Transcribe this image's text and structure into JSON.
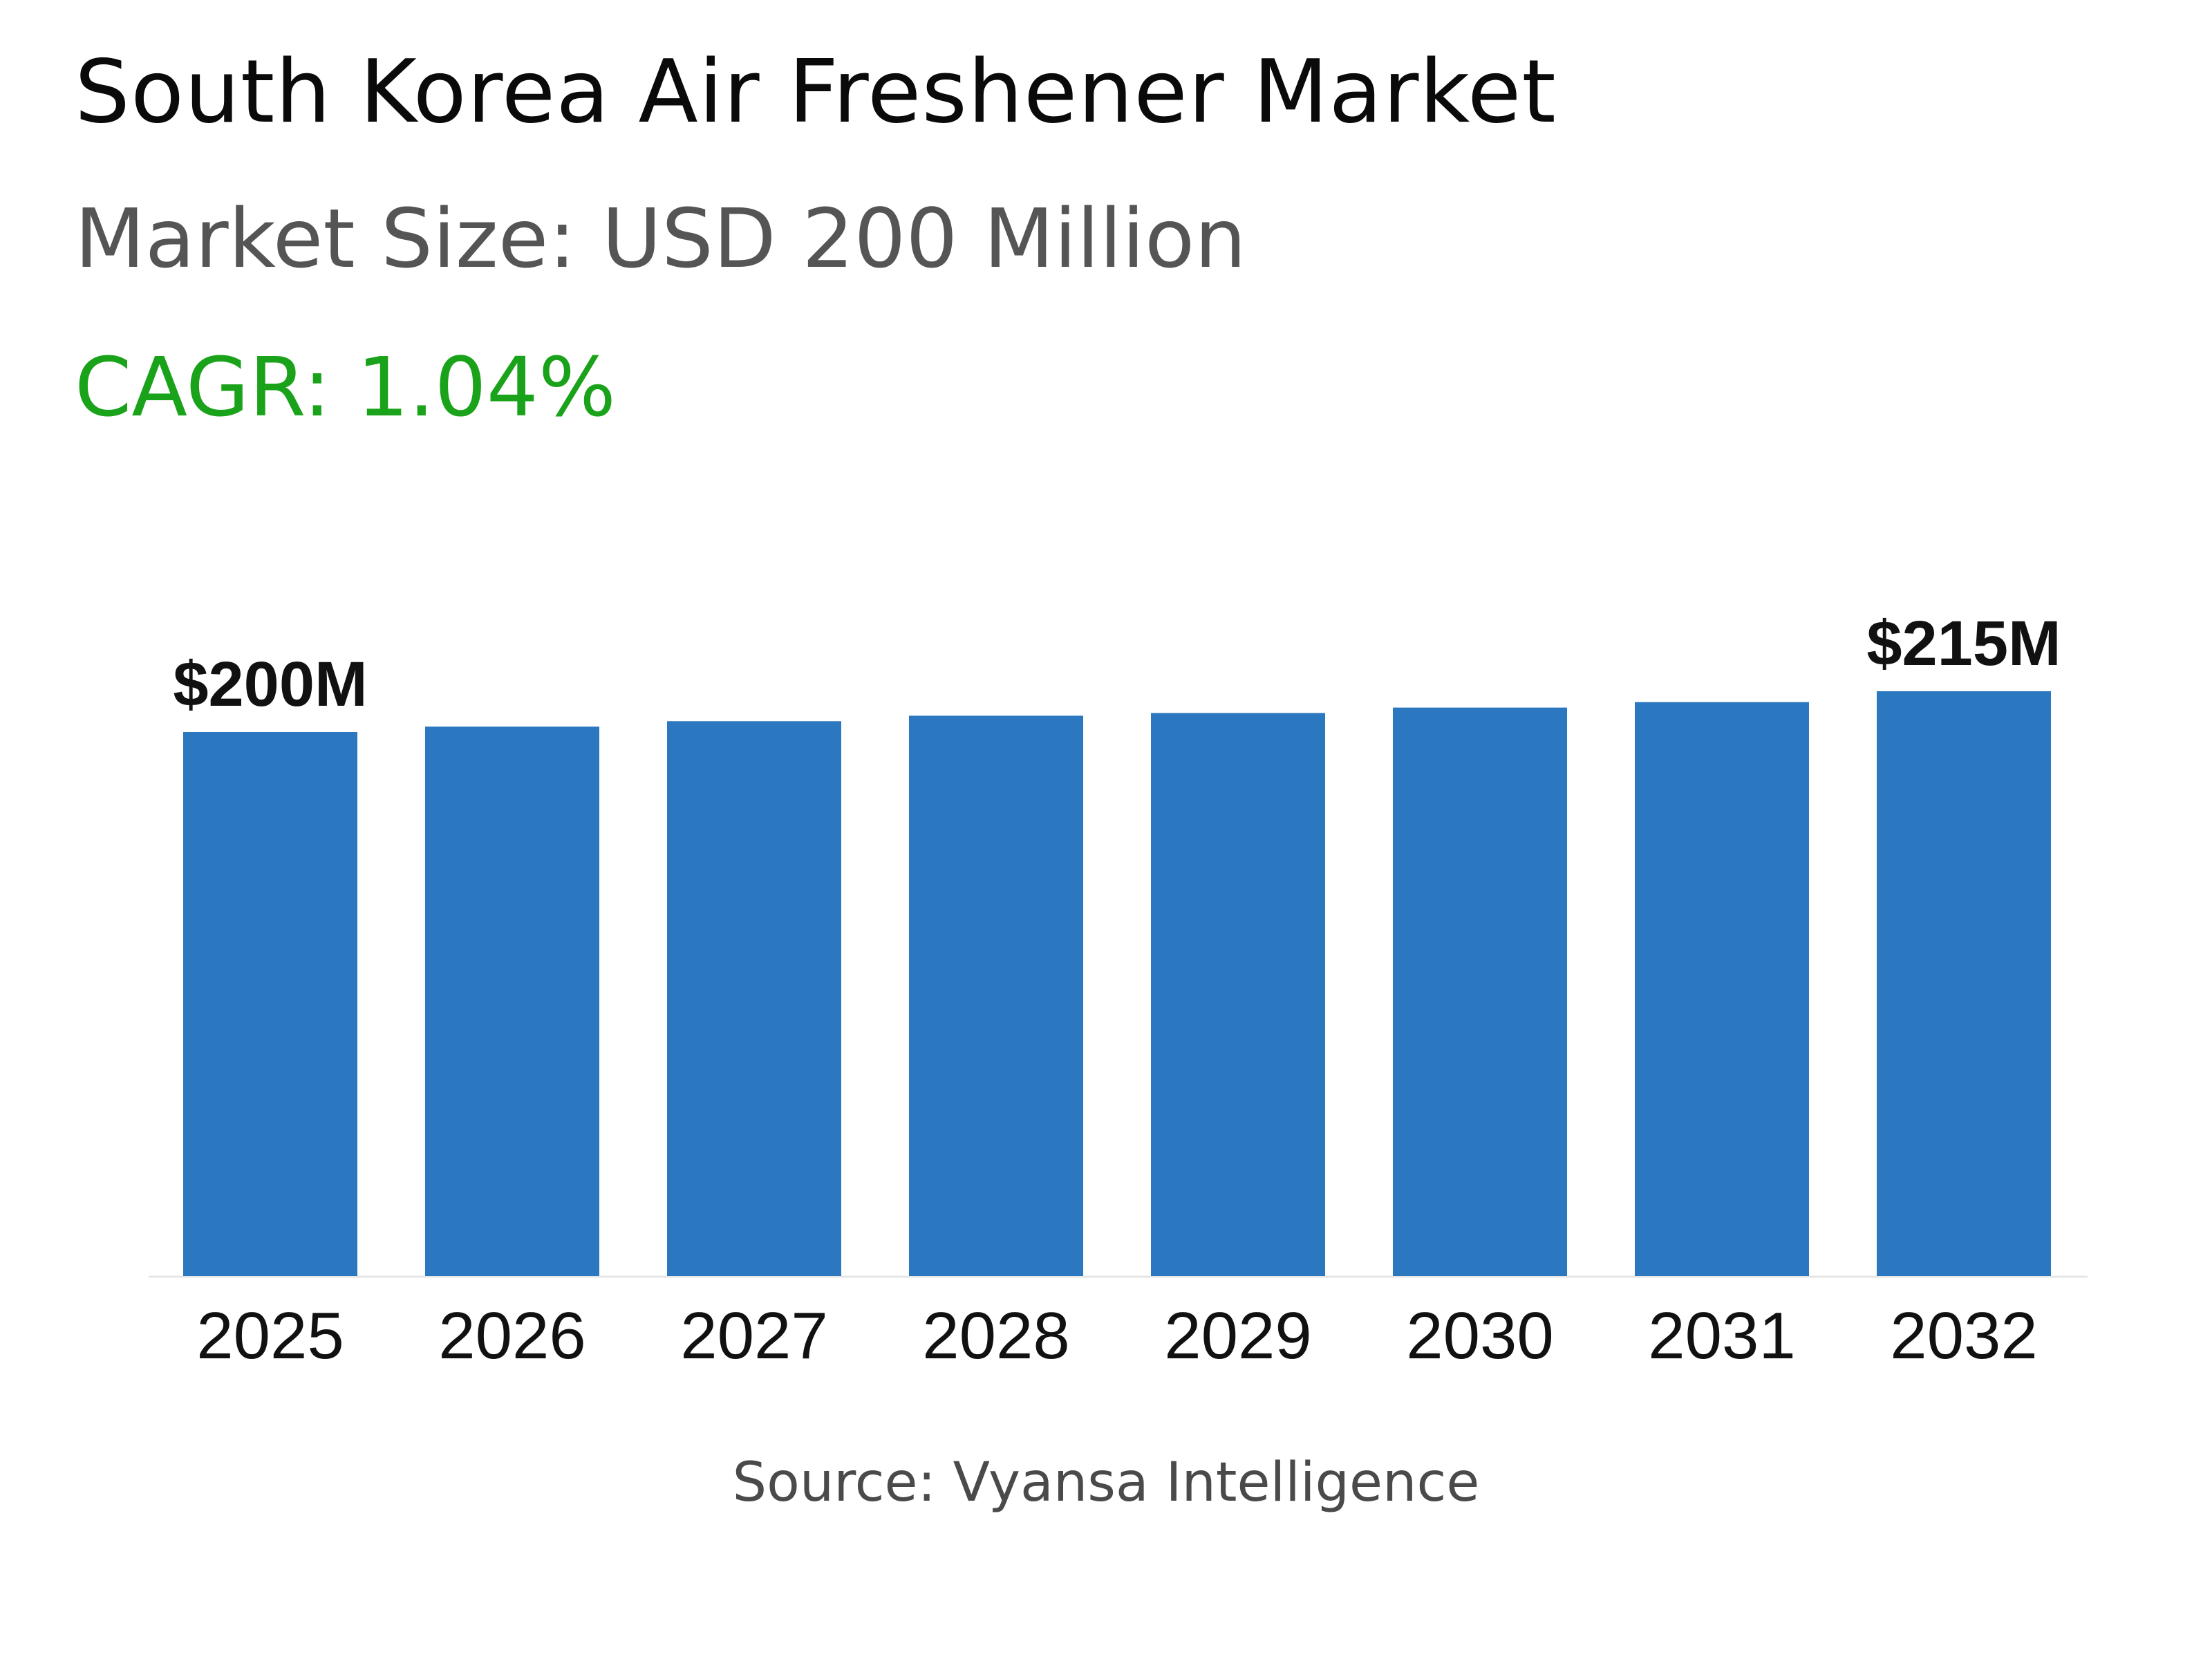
{
  "header": {
    "title": "South Korea Air Freshener Market",
    "market_size": "Market Size: USD 200 Million",
    "cagr": "CAGR: 1.04%"
  },
  "footer": {
    "source": "Source: Vyansa Intelligence"
  },
  "colors": {
    "bar": "#2b77c0",
    "cagr": "#1aa31a",
    "baseline": "#e6e6e6"
  },
  "chart_data": {
    "type": "bar",
    "categories": [
      "2025",
      "2026",
      "2027",
      "2028",
      "2029",
      "2030",
      "2031",
      "2032"
    ],
    "values": [
      200,
      202,
      204,
      206,
      207,
      209,
      211,
      215
    ],
    "unit": "USD Million",
    "data_labels": [
      {
        "category": "2025",
        "text": "$200M"
      },
      {
        "category": "2032",
        "text": "$215M"
      }
    ],
    "ylim": [
      0,
      215
    ],
    "grid": false,
    "legend": "none"
  }
}
